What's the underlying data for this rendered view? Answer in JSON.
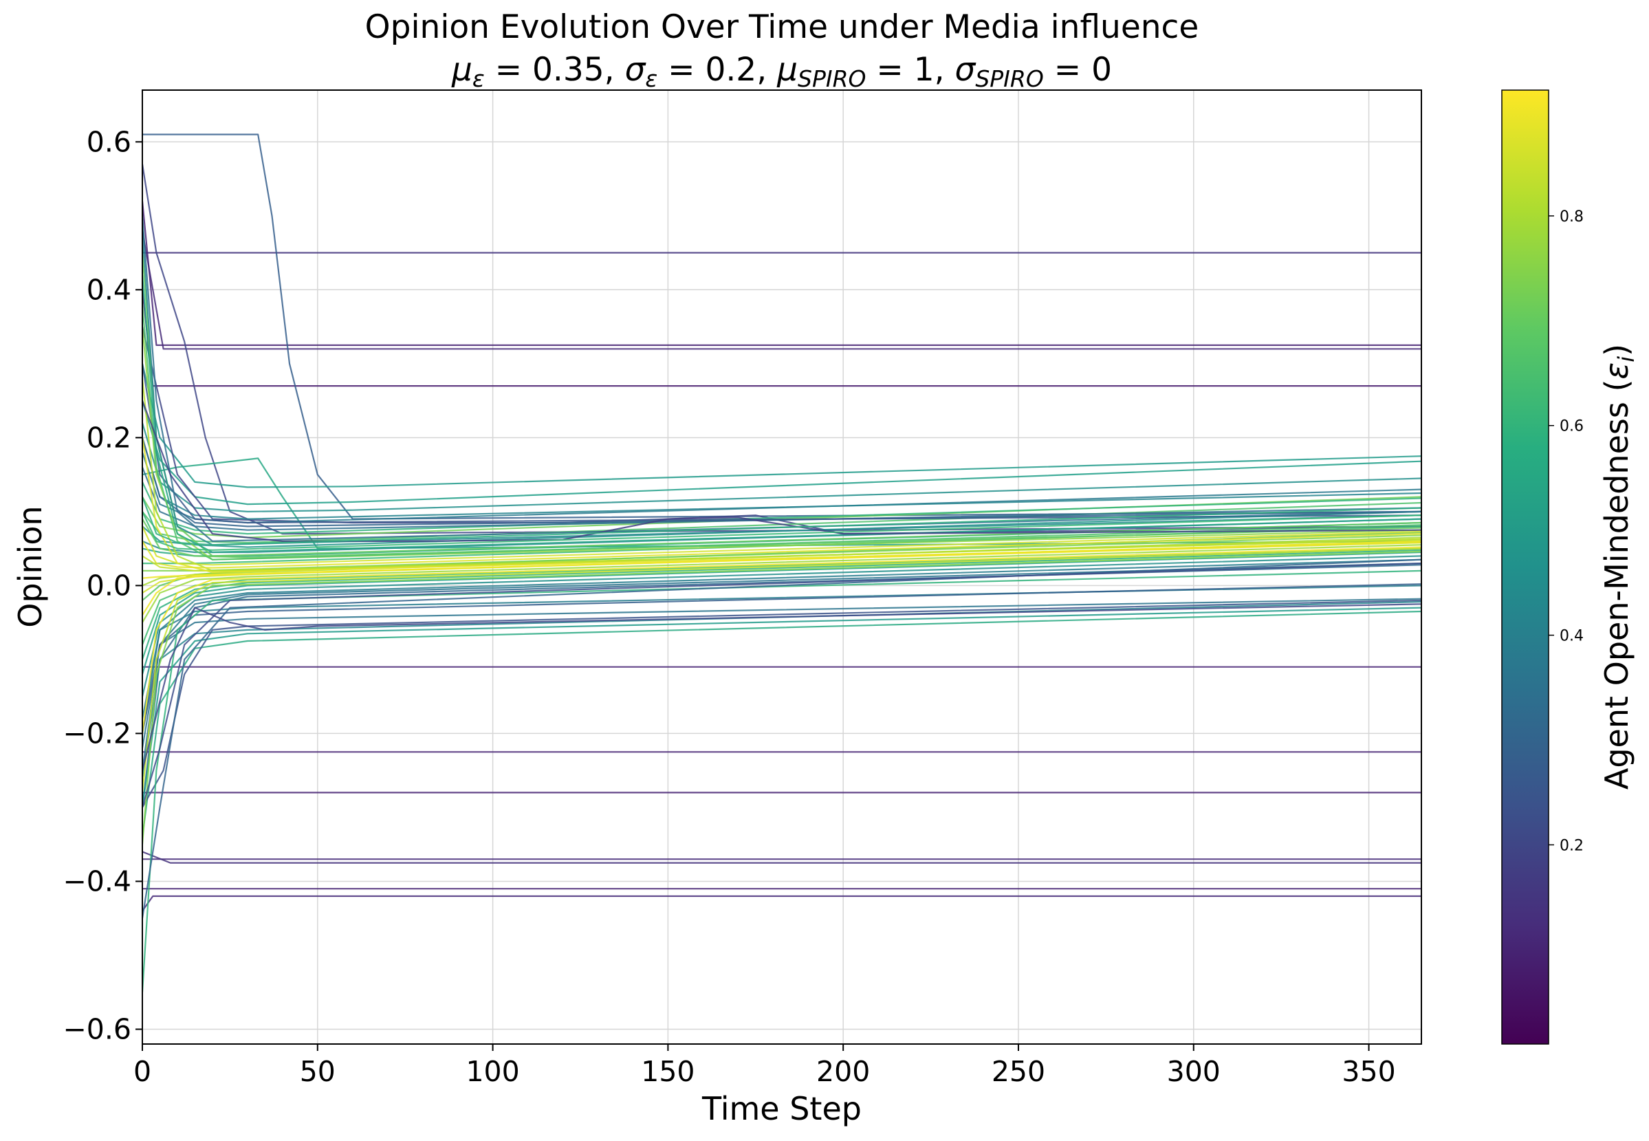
{
  "chart_data": {
    "type": "line",
    "title": "Opinion Evolution Over Time under Media influence",
    "subtitle": {
      "parts": [
        {
          "sym": "μ",
          "sub": "ε",
          "eq": " = 0.35, "
        },
        {
          "sym": "σ",
          "sub": "ε",
          "eq": " = 0.2, "
        },
        {
          "sym": "μ",
          "sub": "SPIRO",
          "eq": " = 1, "
        },
        {
          "sym": "σ",
          "sub": "SPIRO",
          "eq": " = 0"
        }
      ]
    },
    "xlabel": "Time Step",
    "ylabel": "Opinion",
    "xlim": [
      0,
      365
    ],
    "ylim": [
      -0.62,
      0.67
    ],
    "xticks": [
      0,
      50,
      100,
      150,
      200,
      250,
      300,
      350
    ],
    "yticks": [
      -0.6,
      -0.4,
      -0.2,
      0.0,
      0.2,
      0.4,
      0.6
    ],
    "ytick_labels": [
      "−0.6",
      "−0.4",
      "−0.2",
      "0.0",
      "0.2",
      "0.4",
      "0.6"
    ],
    "grid": true,
    "colormap": "viridis",
    "colorbar": {
      "label": "Agent Open-Mindedness (εi)",
      "label_main": "Agent Open-Mindedness (",
      "label_sym": "ε",
      "label_sub": "i",
      "label_end": ")",
      "range": [
        0.01,
        0.92
      ],
      "ticks": [
        0.2,
        0.4,
        0.6,
        0.8
      ],
      "tick_labels": [
        "0.2",
        "0.4",
        "0.6",
        "0.8"
      ]
    },
    "series": [
      {
        "eps": 0.15,
        "x": [
          0,
          365
        ],
        "y": [
          0.45,
          0.45
        ]
      },
      {
        "eps": 0.1,
        "x": [
          0,
          4,
          365
        ],
        "y": [
          0.52,
          0.325,
          0.325
        ]
      },
      {
        "eps": 0.12,
        "x": [
          0,
          6,
          365
        ],
        "y": [
          0.48,
          0.32,
          0.32
        ]
      },
      {
        "eps": 0.08,
        "x": [
          0,
          3,
          365
        ],
        "y": [
          0.4,
          0.27,
          0.27
        ]
      },
      {
        "eps": 0.1,
        "x": [
          0,
          365
        ],
        "y": [
          -0.11,
          -0.11
        ]
      },
      {
        "eps": 0.1,
        "x": [
          0,
          365
        ],
        "y": [
          -0.225,
          -0.225
        ]
      },
      {
        "eps": 0.1,
        "x": [
          0,
          365
        ],
        "y": [
          -0.28,
          -0.28
        ]
      },
      {
        "eps": 0.12,
        "x": [
          0,
          365
        ],
        "y": [
          -0.37,
          -0.37
        ]
      },
      {
        "eps": 0.14,
        "x": [
          0,
          8,
          365
        ],
        "y": [
          -0.36,
          -0.375,
          -0.375
        ]
      },
      {
        "eps": 0.1,
        "x": [
          0,
          365
        ],
        "y": [
          -0.41,
          -0.41
        ]
      },
      {
        "eps": 0.12,
        "x": [
          0,
          3,
          365
        ],
        "y": [
          -0.44,
          -0.42,
          -0.42
        ]
      },
      {
        "eps": 0.28,
        "x": [
          0,
          33,
          37,
          42,
          50,
          60,
          365
        ],
        "y": [
          0.61,
          0.61,
          0.5,
          0.3,
          0.15,
          0.09,
          0.1
        ]
      },
      {
        "eps": 0.2,
        "x": [
          0,
          4,
          12,
          18,
          25,
          40,
          365
        ],
        "y": [
          0.57,
          0.45,
          0.33,
          0.2,
          0.1,
          0.07,
          0.08
        ]
      },
      {
        "eps": 0.55,
        "x": [
          0,
          10,
          20,
          33,
          40,
          50,
          365
        ],
        "y": [
          0.15,
          0.16,
          0.165,
          0.172,
          0.12,
          0.05,
          0.06
        ]
      },
      {
        "eps": 0.5,
        "x": [
          0,
          5,
          15,
          30,
          60,
          365
        ],
        "y": [
          0.3,
          0.2,
          0.14,
          0.133,
          0.134,
          0.175
        ]
      },
      {
        "eps": 0.52,
        "x": [
          0,
          5,
          15,
          30,
          60,
          365
        ],
        "y": [
          0.25,
          0.17,
          0.12,
          0.11,
          0.113,
          0.168
        ]
      },
      {
        "eps": 0.46,
        "x": [
          0,
          5,
          15,
          30,
          60,
          365
        ],
        "y": [
          0.22,
          0.14,
          0.105,
          0.1,
          0.102,
          0.145
        ]
      },
      {
        "eps": 0.2,
        "x": [
          0,
          10,
          20,
          60,
          120,
          150,
          175,
          200,
          365
        ],
        "y": [
          0.35,
          0.15,
          0.09,
          0.085,
          0.085,
          0.09,
          0.095,
          0.07,
          0.08
        ]
      },
      {
        "eps": 0.38,
        "x": [
          0,
          5,
          15,
          30,
          365
        ],
        "y": [
          0.18,
          0.11,
          0.09,
          0.085,
          0.13
        ]
      },
      {
        "eps": 0.42,
        "x": [
          0,
          5,
          15,
          30,
          365
        ],
        "y": [
          0.2,
          0.12,
          0.095,
          0.09,
          0.125
        ]
      },
      {
        "eps": 0.72,
        "x": [
          0,
          5,
          15,
          30,
          365
        ],
        "y": [
          0.12,
          0.08,
          0.07,
          0.065,
          0.12
        ]
      },
      {
        "eps": 0.66,
        "x": [
          0,
          5,
          15,
          30,
          365
        ],
        "y": [
          0.1,
          0.07,
          0.06,
          0.058,
          0.112
        ]
      },
      {
        "eps": 0.6,
        "x": [
          0,
          5,
          15,
          30,
          365
        ],
        "y": [
          0.14,
          0.09,
          0.075,
          0.07,
          0.118
        ]
      },
      {
        "eps": 0.34,
        "x": [
          0,
          5,
          15,
          30,
          365
        ],
        "y": [
          0.16,
          0.1,
          0.08,
          0.075,
          0.105
        ]
      },
      {
        "eps": 0.3,
        "x": [
          0,
          5,
          15,
          30,
          365
        ],
        "y": [
          0.2,
          0.12,
          0.085,
          0.08,
          0.1
        ]
      },
      {
        "eps": 0.26,
        "x": [
          0,
          5,
          15,
          30,
          365
        ],
        "y": [
          0.3,
          0.15,
          0.09,
          0.085,
          0.095
        ]
      },
      {
        "eps": 0.44,
        "x": [
          0,
          5,
          15,
          30,
          365
        ],
        "y": [
          0.06,
          0.05,
          0.045,
          0.045,
          0.09
        ]
      },
      {
        "eps": 0.48,
        "x": [
          0,
          5,
          15,
          30,
          365
        ],
        "y": [
          0.08,
          0.06,
          0.055,
          0.052,
          0.1
        ]
      },
      {
        "eps": 0.56,
        "x": [
          0,
          5,
          15,
          30,
          365
        ],
        "y": [
          0.05,
          0.045,
          0.04,
          0.04,
          0.085
        ]
      },
      {
        "eps": 0.62,
        "x": [
          0,
          5,
          15,
          30,
          365
        ],
        "y": [
          0.03,
          0.03,
          0.03,
          0.032,
          0.08
        ]
      },
      {
        "eps": 0.68,
        "x": [
          0,
          5,
          15,
          30,
          365
        ],
        "y": [
          -0.02,
          0.0,
          0.015,
          0.02,
          0.072
        ]
      },
      {
        "eps": 0.74,
        "x": [
          0,
          5,
          15,
          30,
          365
        ],
        "y": [
          0.02,
          0.02,
          0.02,
          0.022,
          0.068
        ]
      },
      {
        "eps": 0.8,
        "x": [
          0,
          5,
          15,
          30,
          365
        ],
        "y": [
          0.0,
          0.01,
          0.015,
          0.018,
          0.065
        ]
      },
      {
        "eps": 0.86,
        "x": [
          0,
          5,
          15,
          30,
          365
        ],
        "y": [
          -0.01,
          0.005,
          0.012,
          0.015,
          0.06
        ]
      },
      {
        "eps": 0.9,
        "x": [
          0,
          5,
          15,
          30,
          365
        ],
        "y": [
          0.01,
          0.012,
          0.014,
          0.016,
          0.058
        ]
      },
      {
        "eps": 0.84,
        "x": [
          0,
          5,
          15,
          30,
          365
        ],
        "y": [
          0.04,
          0.025,
          0.02,
          0.02,
          0.063
        ]
      },
      {
        "eps": 0.78,
        "x": [
          0,
          5,
          15,
          30,
          365
        ],
        "y": [
          -0.05,
          -0.01,
          0.008,
          0.012,
          0.055
        ]
      },
      {
        "eps": 0.7,
        "x": [
          0,
          5,
          15,
          30,
          365
        ],
        "y": [
          0.09,
          0.05,
          0.04,
          0.038,
          0.078
        ]
      },
      {
        "eps": 0.64,
        "x": [
          0,
          5,
          15,
          30,
          365
        ],
        "y": [
          -0.08,
          -0.02,
          0.0,
          0.008,
          0.05
        ]
      },
      {
        "eps": 0.58,
        "x": [
          0,
          5,
          15,
          30,
          365
        ],
        "y": [
          -0.1,
          -0.03,
          -0.005,
          0.004,
          0.048
        ]
      },
      {
        "eps": 0.52,
        "x": [
          0,
          5,
          15,
          30,
          365
        ],
        "y": [
          -0.12,
          -0.04,
          -0.01,
          0.0,
          0.045
        ]
      },
      {
        "eps": 0.46,
        "x": [
          0,
          5,
          15,
          30,
          365
        ],
        "y": [
          -0.15,
          -0.05,
          -0.015,
          -0.005,
          0.04
        ]
      },
      {
        "eps": 0.4,
        "x": [
          0,
          5,
          15,
          30,
          365
        ],
        "y": [
          -0.2,
          -0.06,
          -0.02,
          -0.01,
          0.035
        ]
      },
      {
        "eps": 0.36,
        "x": [
          0,
          5,
          15,
          30,
          365
        ],
        "y": [
          -0.25,
          -0.08,
          -0.025,
          -0.012,
          0.03
        ]
      },
      {
        "eps": 0.32,
        "x": [
          0,
          5,
          15,
          30,
          365
        ],
        "y": [
          -0.3,
          -0.1,
          -0.03,
          -0.015,
          0.028
        ]
      },
      {
        "eps": 0.4,
        "x": [
          0,
          5,
          15,
          30,
          365
        ],
        "y": [
          -0.18,
          -0.06,
          -0.035,
          -0.03,
          0.0
        ]
      },
      {
        "eps": 0.36,
        "x": [
          0,
          5,
          15,
          30,
          365
        ],
        "y": [
          -0.22,
          -0.08,
          -0.05,
          -0.045,
          -0.018
        ]
      },
      {
        "eps": 0.42,
        "x": [
          0,
          5,
          15,
          30,
          365
        ],
        "y": [
          -0.26,
          -0.1,
          -0.065,
          -0.06,
          -0.022
        ]
      },
      {
        "eps": 0.5,
        "x": [
          0,
          5,
          15,
          30,
          365
        ],
        "y": [
          -0.3,
          -0.13,
          -0.075,
          -0.065,
          -0.03
        ]
      },
      {
        "eps": 0.56,
        "x": [
          0,
          5,
          15,
          30,
          365
        ],
        "y": [
          -0.34,
          -0.16,
          -0.085,
          -0.075,
          -0.035
        ]
      },
      {
        "eps": 0.28,
        "x": [
          0,
          5,
          15,
          30,
          365
        ],
        "y": [
          -0.2,
          -0.08,
          -0.04,
          -0.035,
          0.002
        ]
      },
      {
        "eps": 0.24,
        "x": [
          0,
          6,
          12,
          20,
          30,
          365
        ],
        "y": [
          -0.3,
          -0.25,
          -0.12,
          -0.06,
          -0.055,
          -0.02
        ]
      },
      {
        "eps": 0.6,
        "x": [
          0,
          4,
          10,
          20,
          365
        ],
        "y": [
          -0.55,
          -0.25,
          -0.06,
          -0.02,
          0.02
        ]
      },
      {
        "eps": 0.7,
        "x": [
          0,
          4,
          10,
          20,
          365
        ],
        "y": [
          0.45,
          0.2,
          0.08,
          0.04,
          0.085
        ]
      },
      {
        "eps": 0.76,
        "x": [
          0,
          4,
          10,
          20,
          365
        ],
        "y": [
          0.35,
          0.15,
          0.07,
          0.035,
          0.075
        ]
      },
      {
        "eps": 0.82,
        "x": [
          0,
          4,
          10,
          20,
          365
        ],
        "y": [
          0.28,
          0.1,
          0.04,
          0.02,
          0.062
        ]
      },
      {
        "eps": 0.88,
        "x": [
          0,
          4,
          10,
          20,
          365
        ],
        "y": [
          0.2,
          0.08,
          0.03,
          0.018,
          0.058
        ]
      },
      {
        "eps": 0.9,
        "x": [
          0,
          4,
          10,
          20,
          365
        ],
        "y": [
          -0.2,
          -0.06,
          -0.01,
          0.008,
          0.052
        ]
      },
      {
        "eps": 0.84,
        "x": [
          0,
          4,
          10,
          20,
          365
        ],
        "y": [
          -0.28,
          -0.1,
          -0.02,
          0.004,
          0.05
        ]
      },
      {
        "eps": 0.74,
        "x": [
          0,
          4,
          10,
          20,
          365
        ],
        "y": [
          -0.35,
          -0.12,
          -0.03,
          0.0,
          0.046
        ]
      },
      {
        "eps": 0.66,
        "x": [
          0,
          4,
          10,
          20,
          365
        ],
        "y": [
          0.38,
          0.16,
          0.06,
          0.035,
          0.082
        ]
      },
      {
        "eps": 0.54,
        "x": [
          0,
          4,
          10,
          20,
          365
        ],
        "y": [
          0.42,
          0.18,
          0.07,
          0.045,
          0.09
        ]
      },
      {
        "eps": 0.44,
        "x": [
          0,
          4,
          10,
          20,
          365
        ],
        "y": [
          0.48,
          0.2,
          0.08,
          0.055,
          0.095
        ]
      },
      {
        "eps": 0.34,
        "x": [
          0,
          4,
          10,
          20,
          365
        ],
        "y": [
          0.5,
          0.25,
          0.1,
          0.06,
          0.1
        ]
      },
      {
        "eps": 0.3,
        "x": [
          0,
          5,
          12,
          25,
          365
        ],
        "y": [
          -0.45,
          -0.3,
          -0.1,
          -0.03,
          0.035
        ]
      },
      {
        "eps": 0.22,
        "x": [
          0,
          5,
          12,
          25,
          365
        ],
        "y": [
          -0.3,
          -0.22,
          -0.08,
          -0.02,
          0.03
        ]
      },
      {
        "eps": 0.18,
        "x": [
          0,
          8,
          20,
          40,
          80,
          120,
          150,
          170,
          200,
          365
        ],
        "y": [
          0.25,
          0.15,
          0.07,
          0.06,
          0.06,
          0.062,
          0.09,
          0.092,
          0.07,
          0.075
        ]
      },
      {
        "eps": 0.2,
        "x": [
          0,
          8,
          15,
          25,
          35,
          50,
          365
        ],
        "y": [
          -0.25,
          -0.1,
          -0.03,
          -0.05,
          -0.06,
          -0.055,
          -0.025
        ]
      },
      {
        "eps": 0.62,
        "x": [
          0,
          4,
          10,
          20,
          365
        ],
        "y": [
          0.1,
          0.06,
          0.05,
          0.048,
          0.095
        ]
      },
      {
        "eps": 0.58,
        "x": [
          0,
          4,
          10,
          20,
          365
        ],
        "y": [
          0.12,
          0.07,
          0.058,
          0.055,
          0.105
        ]
      },
      {
        "eps": 0.88,
        "x": [
          0,
          4,
          10,
          20,
          365
        ],
        "y": [
          0.06,
          0.03,
          0.025,
          0.024,
          0.07
        ]
      },
      {
        "eps": 0.9,
        "x": [
          0,
          4,
          10,
          20,
          365
        ],
        "y": [
          -0.04,
          -0.01,
          0.01,
          0.014,
          0.06
        ]
      },
      {
        "eps": 0.86,
        "x": [
          0,
          4,
          10,
          20,
          365
        ],
        "y": [
          0.08,
          0.04,
          0.03,
          0.028,
          0.073
        ]
      }
    ]
  }
}
